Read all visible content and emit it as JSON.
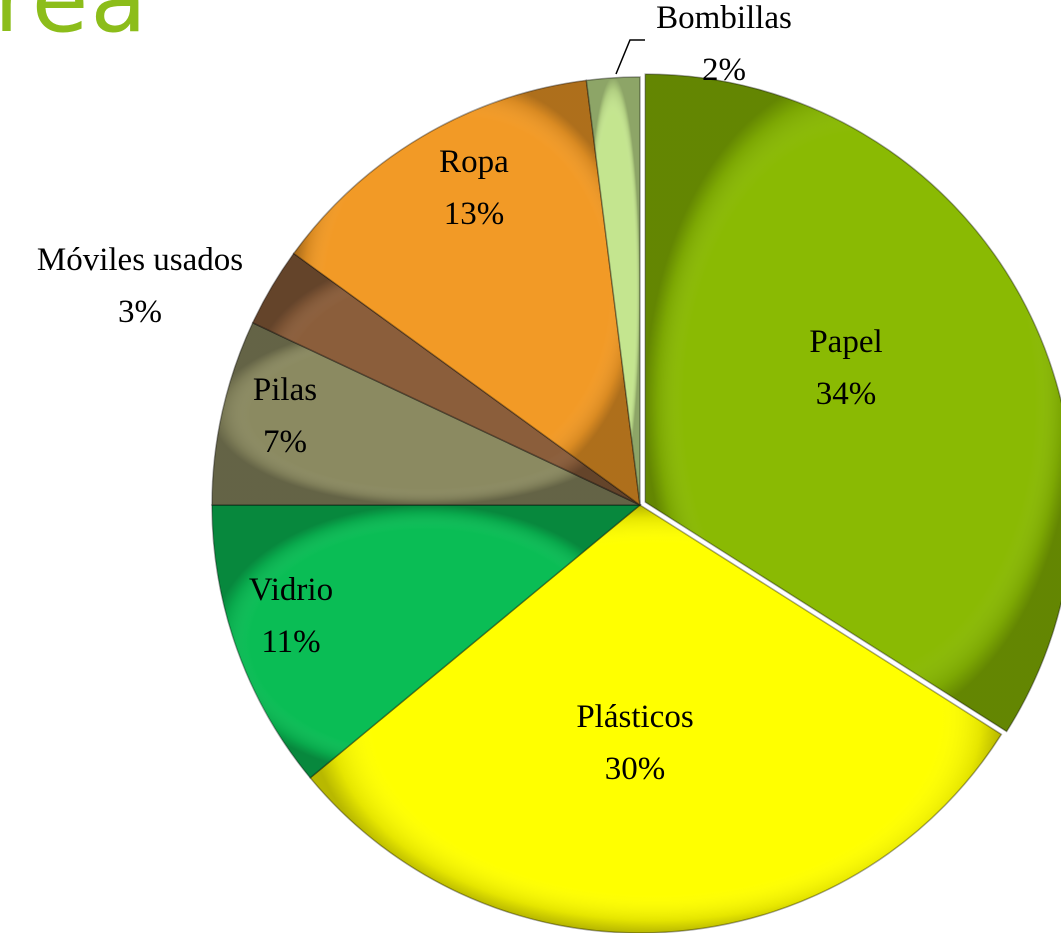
{
  "header": {
    "title_fragment": "rea"
  },
  "chart_data": {
    "type": "pie",
    "title": "",
    "start_angle_deg": 0,
    "direction": "clockwise",
    "slices": [
      {
        "label": "Papel",
        "value": 34,
        "value_label": "34%",
        "color": "#8aba03",
        "exploded": true
      },
      {
        "label": "Plásticos",
        "value": 30,
        "value_label": "30%",
        "color": "#ffff00",
        "exploded": false
      },
      {
        "label": "Vidrio",
        "value": 11,
        "value_label": "11%",
        "color": "#0abd55",
        "exploded": false
      },
      {
        "label": "Pilas",
        "value": 7,
        "value_label": "7%",
        "color": "#8b8a61",
        "exploded": false
      },
      {
        "label": "Móviles usados",
        "value": 3,
        "value_label": "3%",
        "color": "#8b5e3b",
        "exploded": false
      },
      {
        "label": "Ropa",
        "value": 13,
        "value_label": "13%",
        "color": "#f29a26",
        "exploded": false
      },
      {
        "label": "Bombillas",
        "value": 2,
        "value_label": "2%",
        "color": "#c4e58f",
        "exploded": false
      }
    ]
  }
}
